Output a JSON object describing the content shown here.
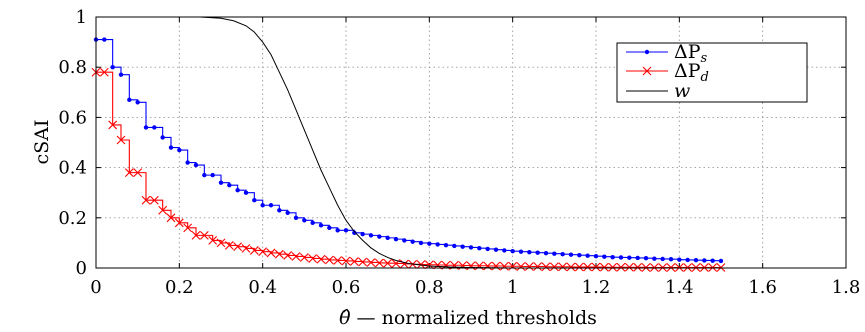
{
  "chart_data": {
    "type": "line",
    "xlabel_theta": "θ̂",
    "xlabel_rest": " — normalized thresholds",
    "ylabel": "cSAI",
    "xlim": [
      0,
      1.8
    ],
    "ylim": [
      0,
      1
    ],
    "grid": true,
    "legend_position": "top-right",
    "x_ticks": [
      0,
      0.2,
      0.4,
      0.6,
      0.8,
      1,
      1.2,
      1.4,
      1.6,
      1.8
    ],
    "x_tick_labels": [
      "0",
      "0.2",
      "0.4",
      "0.6",
      "0.8",
      "1",
      "1.2",
      "1.4",
      "1.6",
      "1.8"
    ],
    "y_ticks": [
      0,
      0.2,
      0.4,
      0.6,
      0.8,
      1
    ],
    "y_tick_labels": [
      "0",
      "0.2",
      "0.4",
      "0.6",
      "0.8",
      "1"
    ],
    "series": [
      {
        "name": "ΔP_s",
        "label_main": "ΔP",
        "label_sub": "s",
        "color": "#0000ff",
        "marker": "dot",
        "x": [
          0.0,
          0.02,
          0.04,
          0.06,
          0.08,
          0.1,
          0.12,
          0.14,
          0.16,
          0.18,
          0.2,
          0.22,
          0.24,
          0.26,
          0.28,
          0.3,
          0.32,
          0.34,
          0.36,
          0.38,
          0.4,
          0.42,
          0.44,
          0.46,
          0.48,
          0.5,
          0.52,
          0.54,
          0.56,
          0.58,
          0.6,
          0.62,
          0.64,
          0.66,
          0.68,
          0.7,
          0.72,
          0.74,
          0.76,
          0.78,
          0.8,
          0.82,
          0.84,
          0.86,
          0.88,
          0.9,
          0.92,
          0.94,
          0.96,
          0.98,
          1.0,
          1.02,
          1.04,
          1.06,
          1.08,
          1.1,
          1.12,
          1.14,
          1.16,
          1.18,
          1.2,
          1.22,
          1.24,
          1.26,
          1.28,
          1.3,
          1.32,
          1.34,
          1.36,
          1.38,
          1.4,
          1.42,
          1.44,
          1.46,
          1.48,
          1.5
        ],
        "y": [
          0.91,
          0.91,
          0.8,
          0.77,
          0.67,
          0.66,
          0.56,
          0.56,
          0.52,
          0.48,
          0.47,
          0.42,
          0.41,
          0.37,
          0.37,
          0.34,
          0.33,
          0.31,
          0.3,
          0.27,
          0.25,
          0.25,
          0.23,
          0.22,
          0.2,
          0.19,
          0.18,
          0.17,
          0.16,
          0.15,
          0.15,
          0.14,
          0.135,
          0.13,
          0.125,
          0.12,
          0.115,
          0.11,
          0.105,
          0.1,
          0.097,
          0.094,
          0.091,
          0.088,
          0.085,
          0.082,
          0.079,
          0.076,
          0.073,
          0.07,
          0.067,
          0.065,
          0.063,
          0.061,
          0.059,
          0.057,
          0.055,
          0.053,
          0.051,
          0.049,
          0.047,
          0.045,
          0.043,
          0.042,
          0.041,
          0.04,
          0.039,
          0.037,
          0.036,
          0.035,
          0.033,
          0.032,
          0.031,
          0.03,
          0.029,
          0.028
        ]
      },
      {
        "name": "ΔP_d",
        "label_main": "ΔP",
        "label_sub": "d",
        "color": "#ff0000",
        "marker": "x",
        "x": [
          0.0,
          0.02,
          0.04,
          0.06,
          0.08,
          0.1,
          0.12,
          0.14,
          0.16,
          0.18,
          0.2,
          0.22,
          0.24,
          0.26,
          0.28,
          0.3,
          0.32,
          0.34,
          0.36,
          0.38,
          0.4,
          0.42,
          0.44,
          0.46,
          0.48,
          0.5,
          0.52,
          0.54,
          0.56,
          0.58,
          0.6,
          0.62,
          0.64,
          0.66,
          0.68,
          0.7,
          0.72,
          0.74,
          0.76,
          0.78,
          0.8,
          0.82,
          0.84,
          0.86,
          0.88,
          0.9,
          0.92,
          0.94,
          0.96,
          0.98,
          1.0,
          1.02,
          1.04,
          1.06,
          1.08,
          1.1,
          1.12,
          1.14,
          1.16,
          1.18,
          1.2,
          1.22,
          1.24,
          1.26,
          1.28,
          1.3,
          1.32,
          1.34,
          1.36,
          1.38,
          1.4,
          1.42,
          1.44,
          1.46,
          1.48,
          1.5
        ],
        "y": [
          0.78,
          0.78,
          0.57,
          0.51,
          0.38,
          0.38,
          0.27,
          0.27,
          0.23,
          0.2,
          0.18,
          0.16,
          0.13,
          0.13,
          0.11,
          0.1,
          0.09,
          0.085,
          0.078,
          0.07,
          0.065,
          0.06,
          0.055,
          0.05,
          0.046,
          0.042,
          0.038,
          0.035,
          0.032,
          0.03,
          0.028,
          0.026,
          0.024,
          0.022,
          0.02,
          0.019,
          0.018,
          0.016,
          0.015,
          0.014,
          0.013,
          0.012,
          0.011,
          0.011,
          0.01,
          0.009,
          0.009,
          0.008,
          0.008,
          0.007,
          0.007,
          0.006,
          0.006,
          0.006,
          0.005,
          0.005,
          0.005,
          0.004,
          0.004,
          0.004,
          0.004,
          0.003,
          0.003,
          0.003,
          0.003,
          0.003,
          0.002,
          0.002,
          0.002,
          0.002,
          0.002,
          0.002,
          0.002,
          0.002,
          0.002,
          0.002
        ]
      },
      {
        "name": "w",
        "label_main": "w",
        "label_sub": "",
        "color": "#000000",
        "marker": "none",
        "x": [
          0.0,
          0.05,
          0.1,
          0.15,
          0.2,
          0.25,
          0.3,
          0.33,
          0.36,
          0.38,
          0.4,
          0.42,
          0.44,
          0.46,
          0.48,
          0.5,
          0.52,
          0.54,
          0.56,
          0.58,
          0.6,
          0.62,
          0.64,
          0.66,
          0.68,
          0.7,
          0.72,
          0.75,
          0.8,
          0.85,
          0.9,
          0.95,
          1.0,
          1.1,
          1.2,
          1.4,
          1.6,
          1.67
        ],
        "y": [
          1.0,
          1.0,
          1.0,
          1.0,
          1.0,
          1.0,
          0.995,
          0.985,
          0.965,
          0.94,
          0.9,
          0.85,
          0.78,
          0.71,
          0.63,
          0.55,
          0.47,
          0.39,
          0.32,
          0.25,
          0.19,
          0.145,
          0.11,
          0.08,
          0.058,
          0.042,
          0.03,
          0.018,
          0.008,
          0.004,
          0.002,
          0.001,
          0.0,
          0.0,
          0.0,
          0.0,
          0.0,
          0.0
        ]
      }
    ]
  }
}
